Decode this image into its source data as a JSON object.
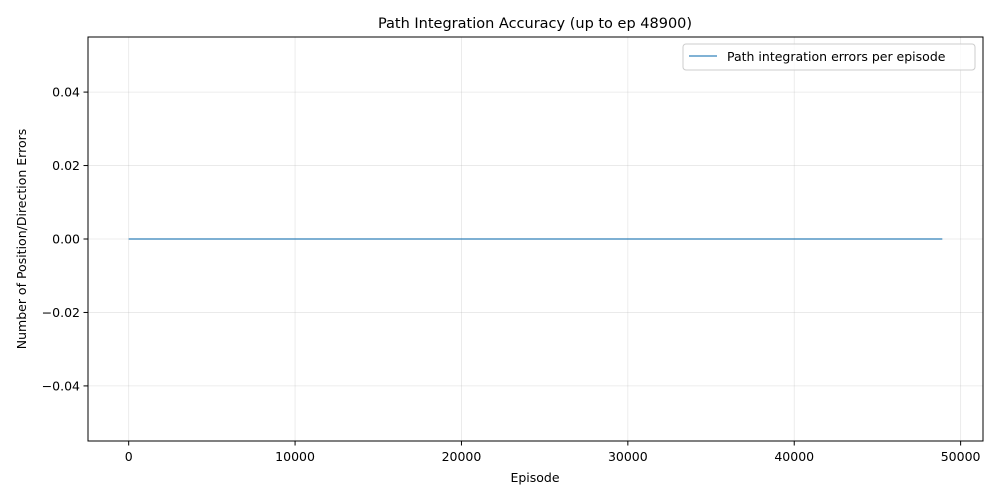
{
  "chart_data": {
    "type": "line",
    "title": "Path Integration Accuracy (up to ep 48900)",
    "xlabel": "Episode",
    "ylabel": "Number of Position/Direction Errors",
    "xlim": [
      -2445,
      51345
    ],
    "ylim": [
      -0.055,
      0.055
    ],
    "x_ticks": [
      0,
      10000,
      20000,
      30000,
      40000,
      50000
    ],
    "x_tick_labels": [
      "0",
      "10000",
      "20000",
      "30000",
      "40000",
      "50000"
    ],
    "y_ticks": [
      -0.04,
      -0.02,
      0.0,
      0.02,
      0.04
    ],
    "y_tick_labels": [
      "−0.04",
      "−0.02",
      "0.00",
      "0.02",
      "0.04"
    ],
    "grid": true,
    "legend_position": "top-right",
    "series": [
      {
        "name": "Path integration errors per episode",
        "color": "#1f77b4",
        "x": [
          0,
          48900
        ],
        "y": [
          0,
          0
        ]
      }
    ]
  }
}
